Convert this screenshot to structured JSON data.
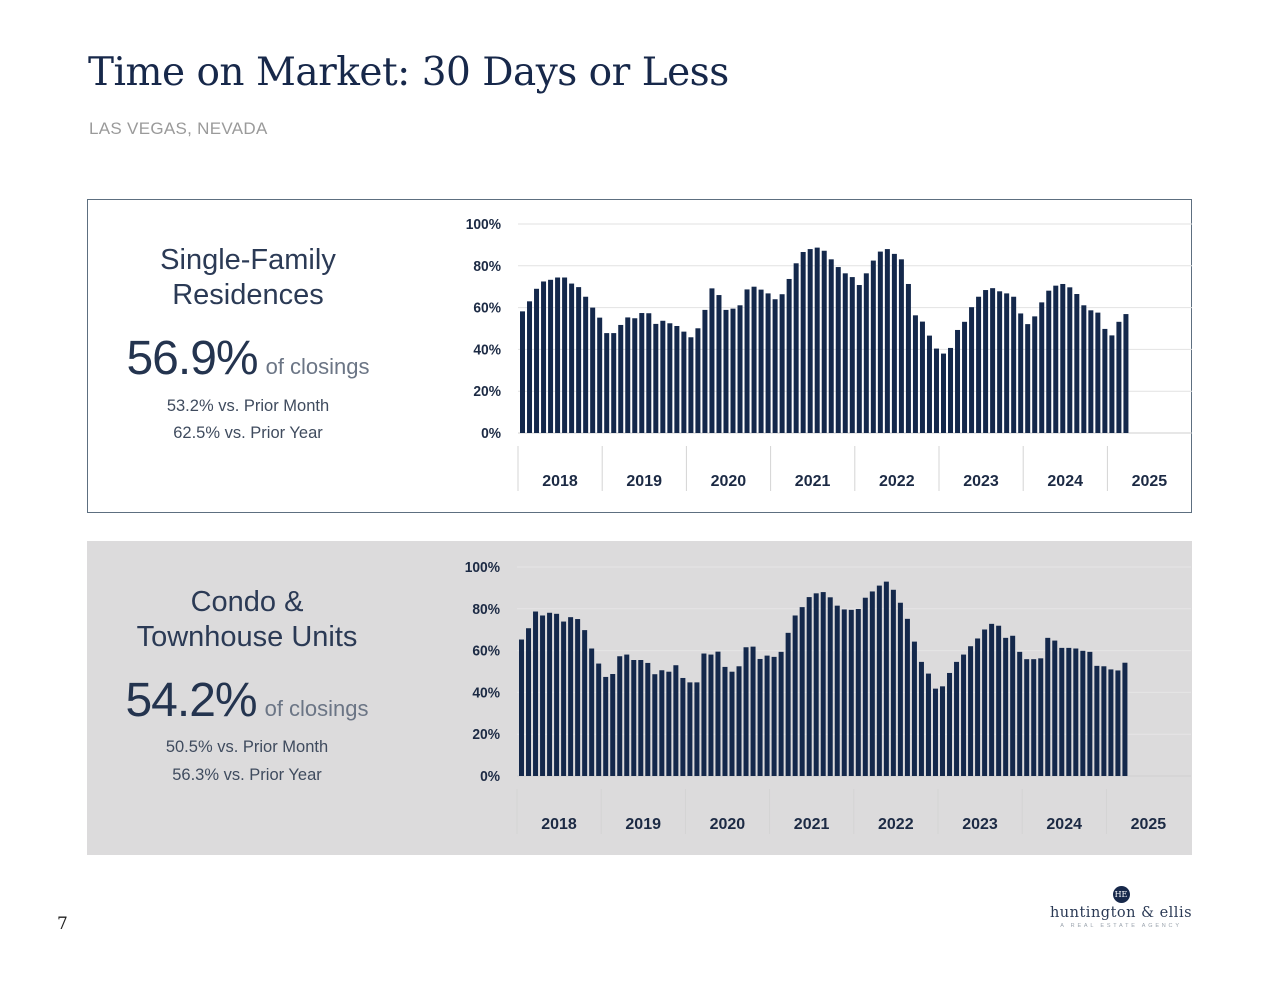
{
  "header": {
    "title": "Time on Market: 30 Days or Less",
    "subtitle": "LAS VEGAS, NEVADA"
  },
  "page_number": "7",
  "logo": {
    "monogram": "HE",
    "name": "huntington & ellis",
    "tagline": "A REAL ESTATE AGENCY"
  },
  "colors": {
    "bar": "#14284b",
    "grid": "#e2e2e2",
    "navy": "#17284a"
  },
  "panels": [
    {
      "title_line1": "Single-Family",
      "title_line2": "Residences",
      "value": "56.9%",
      "value_unit": "of closings",
      "prior_month": "53.2% vs. Prior Month",
      "prior_year": "62.5% vs. Prior Year"
    },
    {
      "title_line1": "Condo &",
      "title_line2": "Townhouse Units",
      "value": "54.2%",
      "value_unit": "of closings",
      "prior_month": "50.5% vs. Prior Month",
      "prior_year": "56.3% vs. Prior Year"
    }
  ],
  "chart_data": [
    {
      "type": "bar",
      "title": "",
      "xlabel": "",
      "ylabel": "",
      "ylim": [
        0,
        100
      ],
      "yticks": [
        "0%",
        "20%",
        "40%",
        "60%",
        "80%",
        "100%"
      ],
      "year_labels": [
        "2018",
        "2019",
        "2020",
        "2021",
        "2022",
        "2023",
        "2024",
        "2025"
      ],
      "grid": true,
      "x_start": "2018-01",
      "x_end": "2025-03",
      "frequency": "monthly",
      "values": [
        58.2,
        63,
        69,
        72.5,
        73.3,
        74.4,
        74.4,
        71.5,
        69.8,
        65.2,
        60,
        55.2,
        47.8,
        47.8,
        51.7,
        55.3,
        54.9,
        57.4,
        57.3,
        52.2,
        53.7,
        52.5,
        51.2,
        48.5,
        45.8,
        50.1,
        58.9,
        69.2,
        66,
        58.9,
        59.5,
        61.1,
        68.7,
        70,
        68.6,
        66.8,
        64,
        66.4,
        73.7,
        81.2,
        86.6,
        88,
        88.7,
        87.2,
        83.1,
        79.4,
        76.4,
        74.6,
        70.8,
        76.4,
        82.5,
        86.8,
        88,
        85.7,
        83.1,
        71.3,
        56.3,
        53.3,
        46.6,
        40.4,
        38,
        40.7,
        49.3,
        53.2,
        60.2,
        65.2,
        68.4,
        69.3,
        67.8,
        66.8,
        65.2,
        57.2,
        52.1,
        55.8,
        62.5,
        68.1,
        70.5,
        71.3,
        69.7,
        66.5,
        61.1,
        58.7,
        57.6,
        49.8,
        46.7,
        53.2,
        56.9
      ]
    },
    {
      "type": "bar",
      "title": "",
      "xlabel": "",
      "ylabel": "",
      "ylim": [
        0,
        100
      ],
      "yticks": [
        "0%",
        "20%",
        "40%",
        "60%",
        "80%",
        "100%"
      ],
      "year_labels": [
        "2018",
        "2019",
        "2020",
        "2021",
        "2022",
        "2023",
        "2024",
        "2025"
      ],
      "grid": true,
      "x_start": "2018-01",
      "x_end": "2025-03",
      "frequency": "monthly",
      "values": [
        65.3,
        70.7,
        78.7,
        76.8,
        78.1,
        77.6,
        73.9,
        76,
        75.1,
        69.8,
        61,
        53.8,
        47.4,
        48.8,
        57.3,
        58.1,
        55.5,
        55.5,
        54.1,
        48.7,
        50.6,
        49.9,
        53,
        46.9,
        44.8,
        44.8,
        58.6,
        58.1,
        59.5,
        52.2,
        49.9,
        52.5,
        61.6,
        61.9,
        56,
        57.6,
        57,
        59.4,
        68.5,
        76.8,
        80.8,
        85.6,
        87.4,
        88,
        85.5,
        81.5,
        79.7,
        79.5,
        79.9,
        85.3,
        88.3,
        91.1,
        93,
        89.1,
        82.9,
        75.2,
        64.3,
        54.6,
        49,
        41.8,
        42.9,
        49.3,
        54.6,
        58.1,
        62.1,
        65.8,
        70.1,
        72.8,
        71.9,
        66.1,
        67.1,
        59.4,
        55.9,
        55.9,
        56.3,
        66.1,
        64.8,
        61.3,
        61.3,
        61,
        59.9,
        59.4,
        52.7,
        52.5,
        51,
        50.5,
        54.2
      ]
    }
  ]
}
